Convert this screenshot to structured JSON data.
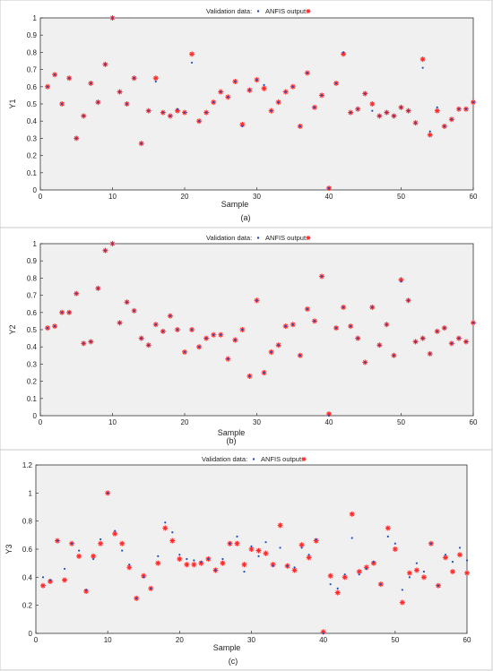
{
  "figure": {
    "panels": [
      {
        "caption": "(a)",
        "legend": {
          "validation": "Validation data:",
          "anfis": "ANFIS output:"
        },
        "xlabel": "Sample",
        "ylabel": "Y1"
      },
      {
        "caption": "(b)",
        "legend": {
          "validation": "Validation data:",
          "anfis": "ANFIS output:"
        },
        "xlabel": "Sample",
        "ylabel": "Y2"
      },
      {
        "caption": "(c)",
        "legend": {
          "validation": "Validation data:",
          "anfis": "ANFIS output:"
        },
        "xlabel": "Sample",
        "ylabel": "Y3"
      }
    ]
  },
  "colors": {
    "validation": "#1f4fbf",
    "anfis": "#ff2a2a",
    "background": "#f0f0f0",
    "axis": "#333333"
  },
  "chart_data": [
    {
      "type": "scatter",
      "title": "",
      "xlabel": "Sample",
      "ylabel": "Y1",
      "xlim": [
        0,
        60
      ],
      "ylim": [
        0,
        1
      ],
      "xticks": [
        0,
        10,
        20,
        30,
        40,
        50,
        60
      ],
      "yticks": [
        0,
        0.1,
        0.2,
        0.3,
        0.4,
        0.5,
        0.6,
        0.7,
        0.8,
        0.9,
        1
      ],
      "legend_position": "top-center",
      "x": [
        1,
        2,
        3,
        4,
        5,
        6,
        7,
        8,
        9,
        10,
        11,
        12,
        13,
        14,
        15,
        16,
        17,
        18,
        19,
        20,
        21,
        22,
        23,
        24,
        25,
        26,
        27,
        28,
        29,
        30,
        31,
        32,
        33,
        34,
        35,
        36,
        37,
        38,
        39,
        40,
        41,
        42,
        43,
        44,
        45,
        46,
        47,
        48,
        49,
        50,
        51,
        52,
        53,
        54,
        55,
        56,
        57,
        58,
        59,
        60
      ],
      "series": [
        {
          "name": "Validation data:",
          "marker": "dot",
          "values": [
            0.6,
            0.67,
            0.5,
            0.65,
            0.3,
            0.43,
            0.62,
            0.51,
            0.73,
            1.0,
            0.57,
            0.5,
            0.65,
            0.27,
            0.46,
            0.63,
            0.45,
            0.43,
            0.47,
            0.45,
            0.74,
            0.4,
            0.45,
            0.51,
            0.57,
            0.54,
            0.63,
            0.37,
            0.58,
            0.64,
            0.61,
            0.46,
            0.51,
            0.57,
            0.6,
            0.37,
            0.68,
            0.48,
            0.55,
            0.01,
            0.62,
            0.8,
            0.45,
            0.47,
            0.56,
            0.46,
            0.43,
            0.45,
            0.43,
            0.48,
            0.46,
            0.39,
            0.71,
            0.34,
            0.48,
            0.37,
            0.41,
            0.47,
            0.47,
            0.51
          ]
        },
        {
          "name": "ANFIS output:",
          "marker": "star",
          "values": [
            0.6,
            0.67,
            0.5,
            0.65,
            0.3,
            0.43,
            0.62,
            0.51,
            0.73,
            1.0,
            0.57,
            0.5,
            0.65,
            0.27,
            0.46,
            0.65,
            0.45,
            0.43,
            0.46,
            0.45,
            0.79,
            0.4,
            0.45,
            0.51,
            0.57,
            0.54,
            0.63,
            0.38,
            0.58,
            0.64,
            0.59,
            0.46,
            0.51,
            0.57,
            0.6,
            0.37,
            0.68,
            0.48,
            0.55,
            0.01,
            0.62,
            0.79,
            0.45,
            0.47,
            0.56,
            0.5,
            0.43,
            0.45,
            0.43,
            0.48,
            0.46,
            0.39,
            0.76,
            0.32,
            0.46,
            0.37,
            0.41,
            0.47,
            0.47,
            0.51
          ]
        }
      ]
    },
    {
      "type": "scatter",
      "title": "",
      "xlabel": "Sample",
      "ylabel": "Y2",
      "xlim": [
        0,
        60
      ],
      "ylim": [
        0,
        1
      ],
      "xticks": [
        0,
        10,
        20,
        30,
        40,
        50,
        60
      ],
      "yticks": [
        0,
        0.1,
        0.2,
        0.3,
        0.4,
        0.5,
        0.6,
        0.7,
        0.8,
        0.9,
        1
      ],
      "legend_position": "top-center",
      "x": [
        1,
        2,
        3,
        4,
        5,
        6,
        7,
        8,
        9,
        10,
        11,
        12,
        13,
        14,
        15,
        16,
        17,
        18,
        19,
        20,
        21,
        22,
        23,
        24,
        25,
        26,
        27,
        28,
        29,
        30,
        31,
        32,
        33,
        34,
        35,
        36,
        37,
        38,
        39,
        40,
        41,
        42,
        43,
        44,
        45,
        46,
        47,
        48,
        49,
        50,
        51,
        52,
        53,
        54,
        55,
        56,
        57,
        58,
        59,
        60
      ],
      "series": [
        {
          "name": "Validation data:",
          "marker": "dot",
          "values": [
            0.51,
            0.52,
            0.6,
            0.6,
            0.71,
            0.42,
            0.43,
            0.74,
            0.96,
            1.0,
            0.54,
            0.66,
            0.61,
            0.45,
            0.41,
            0.53,
            0.49,
            0.58,
            0.5,
            0.37,
            0.5,
            0.4,
            0.45,
            0.47,
            0.47,
            0.33,
            0.44,
            0.5,
            0.23,
            0.67,
            0.25,
            0.37,
            0.41,
            0.52,
            0.53,
            0.35,
            0.62,
            0.55,
            0.81,
            0.0,
            0.51,
            0.63,
            0.52,
            0.45,
            0.31,
            0.63,
            0.41,
            0.53,
            0.35,
            0.78,
            0.67,
            0.43,
            0.45,
            0.36,
            0.49,
            0.51,
            0.42,
            0.45,
            0.43,
            0.54
          ]
        },
        {
          "name": "ANFIS output:",
          "marker": "star",
          "values": [
            0.51,
            0.52,
            0.6,
            0.6,
            0.71,
            0.42,
            0.43,
            0.74,
            0.96,
            1.0,
            0.54,
            0.66,
            0.61,
            0.45,
            0.41,
            0.53,
            0.49,
            0.58,
            0.5,
            0.37,
            0.5,
            0.4,
            0.45,
            0.47,
            0.47,
            0.33,
            0.44,
            0.5,
            0.23,
            0.67,
            0.25,
            0.37,
            0.41,
            0.52,
            0.53,
            0.35,
            0.62,
            0.55,
            0.81,
            0.01,
            0.51,
            0.63,
            0.52,
            0.45,
            0.31,
            0.63,
            0.41,
            0.53,
            0.35,
            0.79,
            0.67,
            0.43,
            0.45,
            0.36,
            0.49,
            0.51,
            0.42,
            0.45,
            0.43,
            0.54
          ]
        }
      ]
    },
    {
      "type": "scatter",
      "title": "",
      "xlabel": "Sample",
      "ylabel": "Y3",
      "xlim": [
        0,
        60
      ],
      "ylim": [
        0,
        1.2
      ],
      "xticks": [
        0,
        10,
        20,
        30,
        40,
        50,
        60
      ],
      "yticks": [
        0,
        0.2,
        0.4,
        0.6,
        0.8,
        1,
        1.2
      ],
      "legend_position": "top-center",
      "x": [
        1,
        2,
        3,
        4,
        5,
        6,
        7,
        8,
        9,
        10,
        11,
        12,
        13,
        14,
        15,
        16,
        17,
        18,
        19,
        20,
        21,
        22,
        23,
        24,
        25,
        26,
        27,
        28,
        29,
        30,
        31,
        32,
        33,
        34,
        35,
        36,
        37,
        38,
        39,
        40,
        41,
        42,
        43,
        44,
        45,
        46,
        47,
        48,
        49,
        50,
        51,
        52,
        53,
        54,
        55,
        56,
        57,
        58,
        59,
        60
      ],
      "series": [
        {
          "name": "Validation data:",
          "marker": "dot",
          "values": [
            0.4,
            0.38,
            0.66,
            0.46,
            0.64,
            0.59,
            0.31,
            0.53,
            0.67,
            1.0,
            0.73,
            0.59,
            0.49,
            0.25,
            0.4,
            0.32,
            0.55,
            0.79,
            0.72,
            0.56,
            0.53,
            0.52,
            0.51,
            0.53,
            0.45,
            0.53,
            0.64,
            0.69,
            0.44,
            0.62,
            0.55,
            0.65,
            0.48,
            0.61,
            0.48,
            0.47,
            0.61,
            0.56,
            0.67,
            0.0,
            0.35,
            0.32,
            0.42,
            0.68,
            0.42,
            0.46,
            0.51,
            0.35,
            0.69,
            0.64,
            0.31,
            0.4,
            0.5,
            0.44,
            0.64,
            0.34,
            0.56,
            0.51,
            0.61,
            0.52
          ]
        },
        {
          "name": "ANFIS output:",
          "marker": "star",
          "values": [
            0.34,
            0.37,
            0.66,
            0.38,
            0.64,
            0.55,
            0.3,
            0.55,
            0.64,
            1.0,
            0.71,
            0.64,
            0.47,
            0.25,
            0.41,
            0.32,
            0.5,
            0.75,
            0.66,
            0.53,
            0.49,
            0.49,
            0.5,
            0.53,
            0.45,
            0.5,
            0.64,
            0.64,
            0.49,
            0.6,
            0.59,
            0.57,
            0.49,
            0.77,
            0.48,
            0.45,
            0.63,
            0.54,
            0.66,
            0.01,
            0.41,
            0.29,
            0.4,
            0.85,
            0.44,
            0.47,
            0.5,
            0.35,
            0.75,
            0.6,
            0.22,
            0.43,
            0.45,
            0.4,
            0.64,
            0.34,
            0.54,
            0.44,
            0.56,
            0.43
          ]
        }
      ]
    }
  ]
}
